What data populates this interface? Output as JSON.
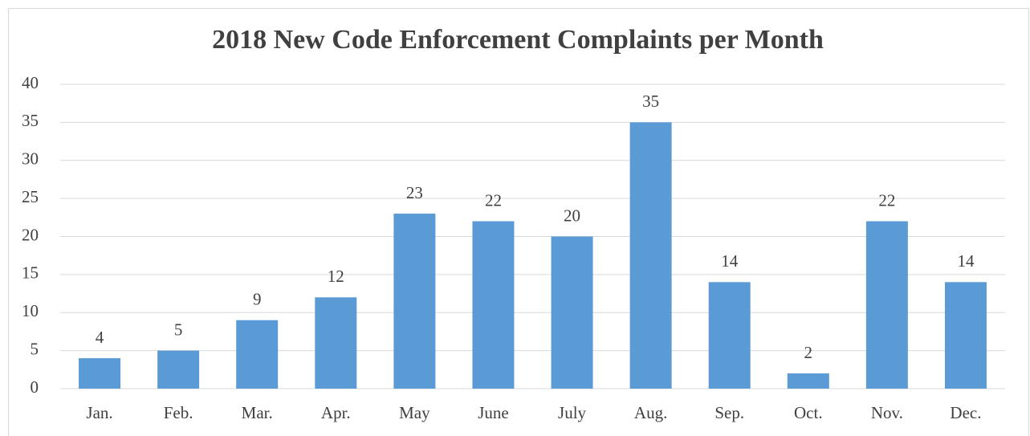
{
  "chart_data": {
    "type": "bar",
    "title": "2018 New Code Enforcement Complaints per Month",
    "categories": [
      "Jan.",
      "Feb.",
      "Mar.",
      "Apr.",
      "May",
      "June",
      "July",
      "Aug.",
      "Sep.",
      "Oct.",
      "Nov.",
      "Dec."
    ],
    "values": [
      4,
      5,
      9,
      12,
      23,
      22,
      20,
      35,
      14,
      2,
      22,
      14
    ],
    "color": "#5b9bd5",
    "ylim": [
      0,
      40
    ],
    "yticks": [
      0,
      5,
      10,
      15,
      20,
      25,
      30,
      35,
      40
    ],
    "grid": true,
    "data_labels": true
  }
}
